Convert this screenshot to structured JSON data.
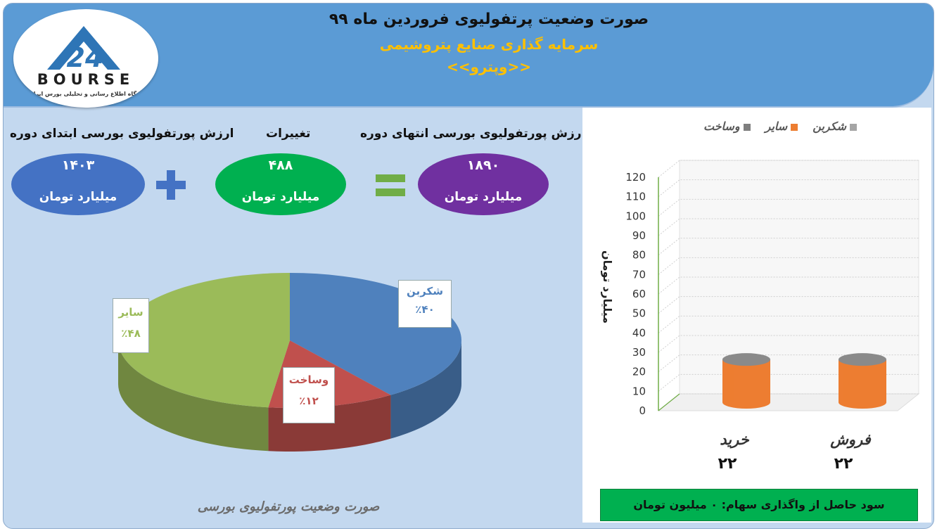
{
  "header": {
    "title": "صورت وضعیت پرتفولیوی فروردین ماه ۹۹",
    "subtitle": "سرمایه گذاری صنایع پتروشیمی",
    "ticker": "<<وپترو>>"
  },
  "logo": {
    "word": "BOURSE",
    "tagline": "پایگاه اطلاع رسانی و تحلیلی بورس ایران",
    "numerals": "24"
  },
  "summary": {
    "start": {
      "label": "ارزش پورتفولیوی بورسی ابتدای دوره",
      "value": "۱۴۰۳",
      "unit": "میلیارد تومان",
      "color": "#4472c4"
    },
    "change": {
      "label": "تغییرات",
      "value": "۴۸۸",
      "unit": "میلیارد تومان",
      "color": "#00b050"
    },
    "end": {
      "label": "ارزش پورتفولیوی بورسی انتهای دوره",
      "value": "۱۸۹۰",
      "unit": "میلیارد تومان",
      "color": "#7030a0"
    },
    "plus_color": "#4472c4",
    "equals_color": "#70ad47"
  },
  "chart_data": [
    {
      "type": "pie",
      "caption": "صورت وضعیت پورتفولیوی بورسی",
      "slices": [
        {
          "name": "شکربن",
          "percent_label": "٪۴۰",
          "value": 40,
          "color": "#4f81bd",
          "label_color": "#4f81bd"
        },
        {
          "name": "وساخت",
          "percent_label": "٪۱۲",
          "value": 12,
          "color": "#c0504d",
          "label_color": "#c0504d"
        },
        {
          "name": "سایر",
          "percent_label": "٪۴۸",
          "value": 48,
          "color": "#9bbb59",
          "label_color": "#9bbb59"
        }
      ]
    },
    {
      "type": "bar",
      "variant": "3d-cylinder",
      "legend": [
        {
          "name": "شکربن",
          "color": "#a5a5a5"
        },
        {
          "name": "سایر",
          "color": "#ed7d31"
        },
        {
          "name": "وساخت",
          "color": "#7f7f7f"
        }
      ],
      "legend_position": "top",
      "ylabel": "میلیارد تومان",
      "ylim": [
        0,
        120
      ],
      "yticks": [
        0,
        10,
        20,
        30,
        40,
        50,
        60,
        70,
        80,
        90,
        100,
        110,
        120
      ],
      "categories": [
        "خرید",
        "فروش"
      ],
      "value_labels": [
        "۲۲",
        "۲۲"
      ],
      "series": [
        {
          "name": "سایر",
          "values": [
            22,
            22
          ]
        }
      ],
      "grid": true
    }
  ],
  "footer_box": {
    "text": "سود حاصل از واگذاری سهام:  ۰  میلیون تومان",
    "color": "#00b050"
  }
}
